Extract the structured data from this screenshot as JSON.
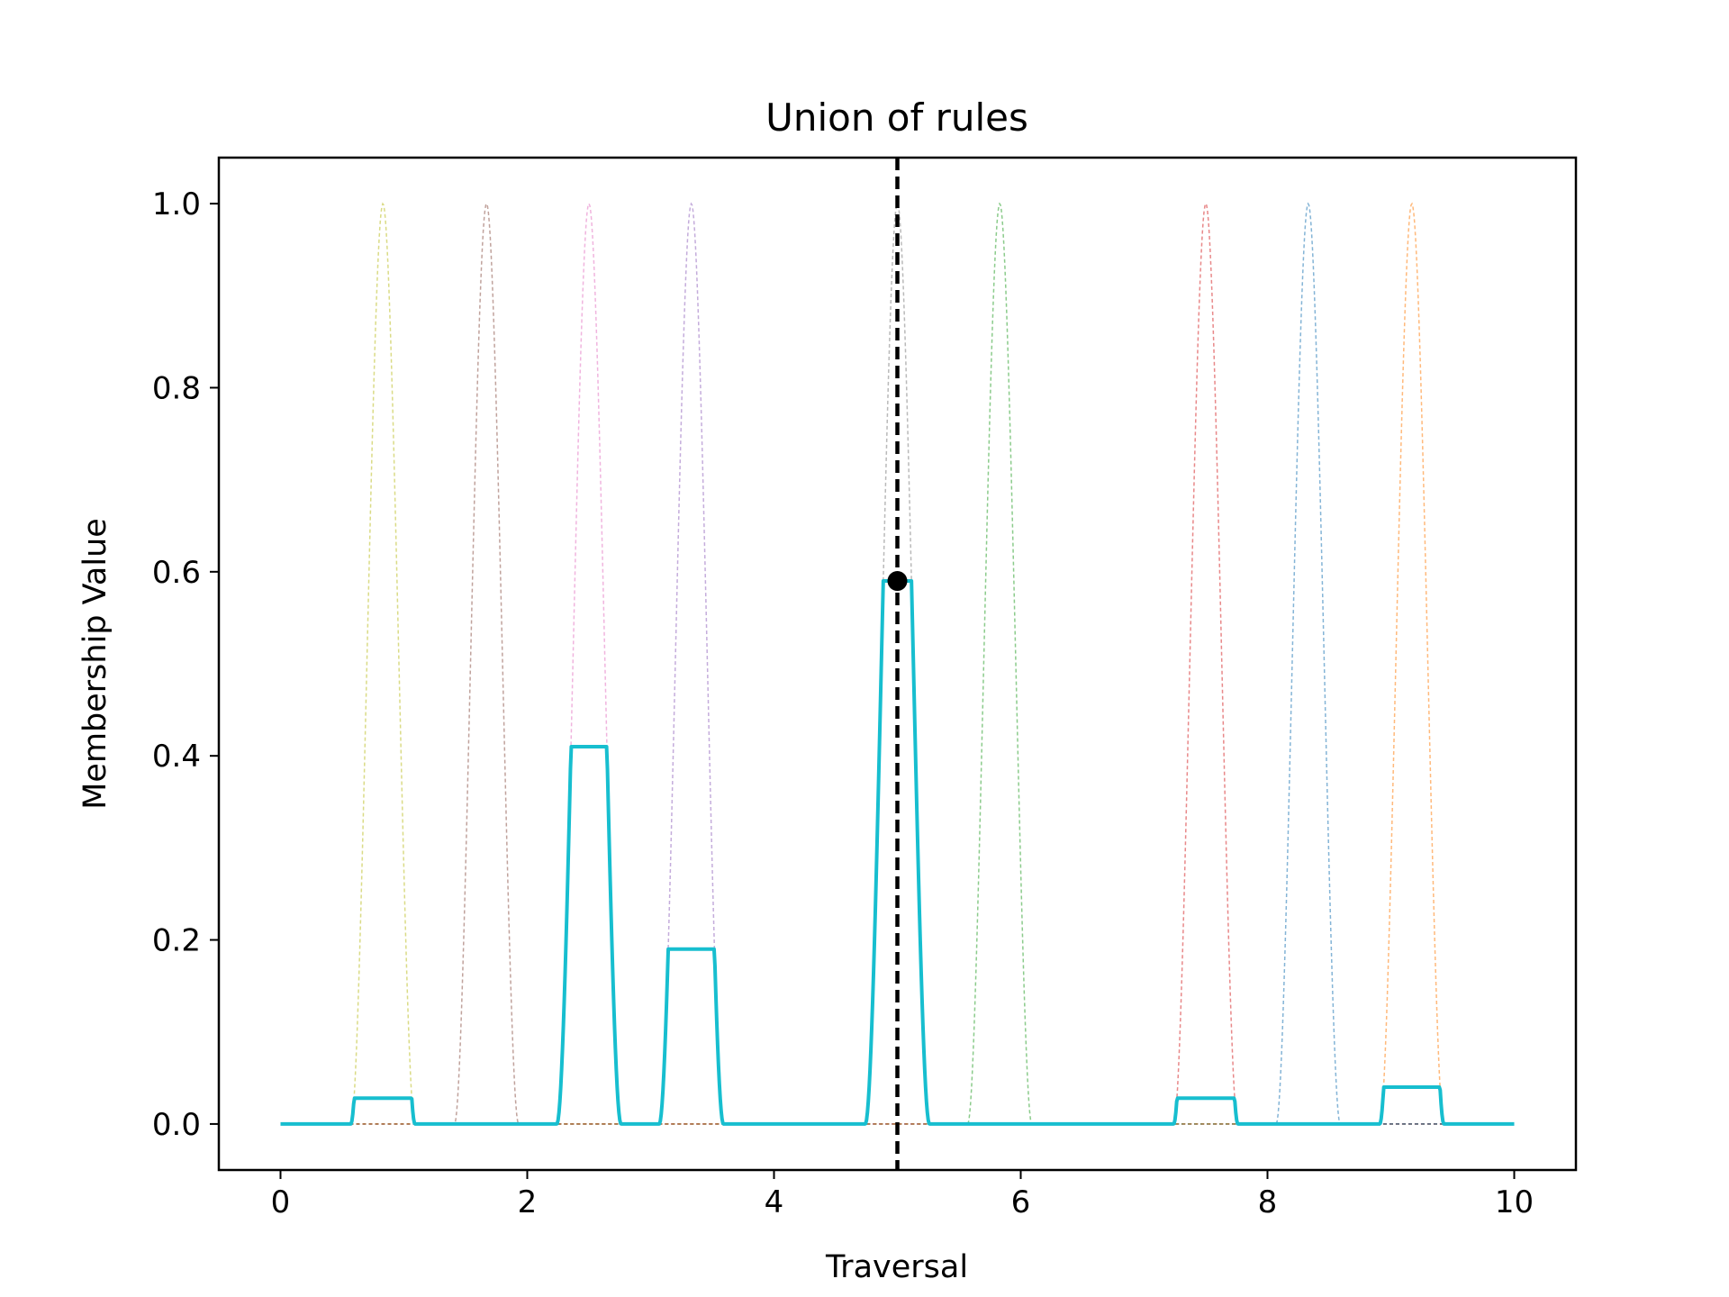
{
  "chart_data": {
    "type": "line",
    "title": "Union of rules",
    "xlabel": "Traversal",
    "ylabel": "Membership Value",
    "xlim": [
      -0.5,
      10.5
    ],
    "ylim": [
      -0.05,
      1.05
    ],
    "xticks": [
      0,
      2,
      4,
      6,
      8,
      10
    ],
    "yticks": [
      0.0,
      0.2,
      0.4,
      0.6,
      0.8,
      1.0
    ],
    "xtick_labels": [
      "0",
      "2",
      "4",
      "6",
      "8",
      "10"
    ],
    "ytick_labels": [
      "0.0",
      "0.2",
      "0.4",
      "0.6",
      "0.8",
      "1.0"
    ],
    "grid": false,
    "legend": "none",
    "rule_curves": [
      {
        "center": 0.83,
        "halfwidth": 0.26,
        "color": "#bcbd22"
      },
      {
        "center": 1.67,
        "halfwidth": 0.26,
        "color": "#8c564b"
      },
      {
        "center": 2.5,
        "halfwidth": 0.26,
        "color": "#e377c2"
      },
      {
        "center": 3.33,
        "halfwidth": 0.26,
        "color": "#9467bd"
      },
      {
        "center": 5.0,
        "halfwidth": 0.26,
        "color": "#7f7f7f"
      },
      {
        "center": 5.83,
        "halfwidth": 0.26,
        "color": "#2ca02c"
      },
      {
        "center": 7.5,
        "halfwidth": 0.26,
        "color": "#d62728"
      },
      {
        "center": 8.33,
        "halfwidth": 0.26,
        "color": "#1f77b4"
      },
      {
        "center": 9.17,
        "halfwidth": 0.26,
        "color": "#ff7f0e"
      }
    ],
    "union_clips": [
      {
        "center": 0.83,
        "clip": 0.028
      },
      {
        "center": 1.67,
        "clip": 0.0
      },
      {
        "center": 2.5,
        "clip": 0.41
      },
      {
        "center": 3.33,
        "clip": 0.19
      },
      {
        "center": 5.0,
        "clip": 0.59
      },
      {
        "center": 5.83,
        "clip": 0.0
      },
      {
        "center": 7.5,
        "clip": 0.028
      },
      {
        "center": 8.33,
        "clip": 0.0
      },
      {
        "center": 9.17,
        "clip": 0.04
      }
    ],
    "union_color": "#17becf",
    "crisp_line_x": 5.0,
    "crisp_point": {
      "x": 5.0,
      "y": 0.59
    }
  }
}
